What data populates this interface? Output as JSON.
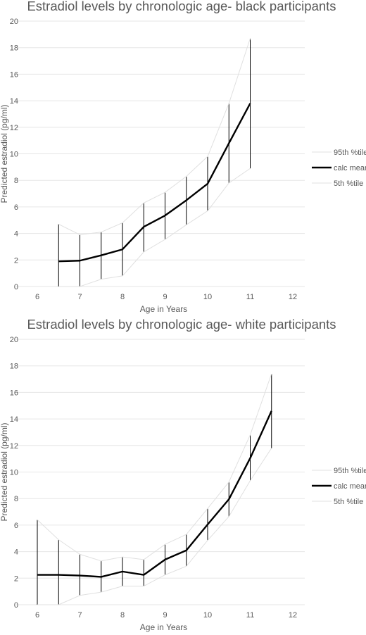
{
  "chart_data": [
    {
      "type": "line",
      "title": "Estradiol levels by chronologic age- black participants",
      "xlabel": "Age in Years",
      "ylabel": "Predicted estradiol (pg/ml)",
      "xlim": [
        6,
        12
      ],
      "ylim": [
        0,
        20
      ],
      "x_ticks": [
        "6",
        "7",
        "8",
        "9",
        "10",
        "11",
        "12"
      ],
      "y_ticks": [
        "0",
        "2",
        "4",
        "6",
        "8",
        "10",
        "12",
        "14",
        "16",
        "18",
        "20"
      ],
      "grid": true,
      "legend_position": "right",
      "x": [
        6.5,
        7,
        7.5,
        8,
        8.5,
        9,
        9.5,
        10,
        10.5,
        11
      ],
      "series": [
        {
          "name": "95th %tile",
          "color": "#e0e0e0",
          "values": [
            4.7,
            3.9,
            4.1,
            4.8,
            6.3,
            7.1,
            8.3,
            9.8,
            13.8,
            18.7
          ]
        },
        {
          "name": "calc mean",
          "color": "#000000",
          "values": [
            1.9,
            1.95,
            2.35,
            2.8,
            4.5,
            5.35,
            6.5,
            7.75,
            10.8,
            13.8
          ]
        },
        {
          "name": "5th %tile",
          "color": "#e0e0e0",
          "values": [
            0.0,
            0.0,
            0.55,
            0.8,
            2.6,
            3.55,
            4.65,
            5.7,
            7.8,
            8.9
          ]
        }
      ]
    },
    {
      "type": "line",
      "title": "Estradiol levels by chronologic age- white participants",
      "xlabel": "Age in Years",
      "ylabel": "Predicted estradiol (pg/ml)",
      "xlim": [
        6,
        12
      ],
      "ylim": [
        0,
        20
      ],
      "x_ticks": [
        "6",
        "7",
        "8",
        "9",
        "10",
        "11",
        "12"
      ],
      "y_ticks": [
        "0",
        "2",
        "4",
        "6",
        "8",
        "10",
        "12",
        "14",
        "16",
        "18",
        "20"
      ],
      "grid": true,
      "legend_position": "right",
      "x": [
        6,
        6.5,
        7,
        7.5,
        8,
        8.5,
        9,
        9.5,
        10,
        10.5,
        11,
        11.5
      ],
      "series": [
        {
          "name": "95th %tile",
          "color": "#e0e0e0",
          "values": [
            6.4,
            4.9,
            3.8,
            3.3,
            3.6,
            3.4,
            4.55,
            5.3,
            7.25,
            9.25,
            12.8,
            17.4
          ]
        },
        {
          "name": "calc mean",
          "color": "#000000",
          "values": [
            2.25,
            2.25,
            2.2,
            2.1,
            2.5,
            2.25,
            3.4,
            4.1,
            6.05,
            7.95,
            11.05,
            14.6
          ]
        },
        {
          "name": "5th %tile",
          "color": "#e0e0e0",
          "values": [
            0.0,
            0.0,
            0.7,
            0.95,
            1.4,
            1.4,
            2.25,
            2.9,
            4.85,
            6.65,
            9.35,
            11.8
          ]
        }
      ]
    }
  ]
}
